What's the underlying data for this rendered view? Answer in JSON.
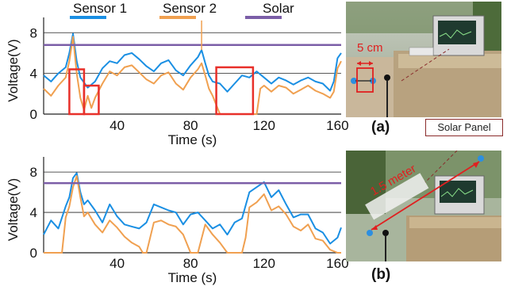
{
  "legend": {
    "entries": [
      {
        "name": "Sensor 1",
        "color": "#1a8fe3"
      },
      {
        "name": "Sensor 2",
        "color": "#f0a050"
      },
      {
        "name": "Solar",
        "color": "#7b5ea7"
      }
    ]
  },
  "chart_data": [
    {
      "type": "line",
      "title": "",
      "xlabel": "Time (s)",
      "ylabel": "Voltage(V)",
      "xlim": [
        0,
        162
      ],
      "ylim": [
        0,
        9.5
      ],
      "xticks": [
        40,
        80,
        120,
        160
      ],
      "yticks": [
        0,
        4,
        8
      ],
      "grid": "horizontal at 4 and 8",
      "series": [
        {
          "name": "Sensor 1",
          "color": "#1a8fe3",
          "x": [
            0,
            4,
            8,
            12,
            14,
            16,
            18,
            20,
            24,
            28,
            32,
            36,
            40,
            44,
            48,
            52,
            56,
            60,
            64,
            68,
            72,
            76,
            80,
            84,
            86,
            88,
            90,
            92,
            96,
            100,
            104,
            108,
            112,
            116,
            120,
            124,
            128,
            132,
            136,
            140,
            144,
            148,
            152,
            156,
            158,
            160,
            162
          ],
          "y": [
            3.8,
            3.2,
            4.0,
            4.6,
            6.0,
            7.9,
            5.2,
            3.6,
            2.6,
            3.2,
            4.5,
            5.2,
            5.0,
            5.8,
            6.0,
            5.4,
            4.7,
            4.2,
            5.0,
            5.3,
            4.3,
            3.8,
            4.8,
            5.6,
            6.3,
            5.0,
            3.8,
            3.2,
            3.0,
            2.2,
            3.0,
            3.8,
            3.6,
            4.2,
            3.6,
            3.0,
            3.6,
            3.3,
            2.9,
            3.3,
            3.6,
            3.2,
            3.0,
            2.3,
            3.2,
            5.5,
            6.0
          ]
        },
        {
          "name": "Sensor 2",
          "color": "#f0a050",
          "x": [
            0,
            4,
            8,
            12,
            14,
            16,
            18,
            20,
            22,
            24,
            26,
            28,
            32,
            36,
            40,
            44,
            48,
            52,
            56,
            60,
            64,
            68,
            72,
            76,
            80,
            84,
            86,
            88,
            90,
            92,
            96,
            100,
            104,
            108,
            112,
            116,
            118,
            120,
            124,
            128,
            132,
            136,
            140,
            144,
            148,
            152,
            156,
            158,
            160,
            162
          ],
          "y": [
            2.5,
            1.8,
            2.8,
            3.6,
            5.2,
            7.6,
            4.0,
            1.6,
            0.4,
            1.8,
            0.6,
            1.6,
            3.0,
            4.2,
            3.8,
            4.6,
            4.8,
            4.1,
            3.4,
            3.0,
            3.8,
            4.1,
            3.0,
            2.4,
            3.6,
            4.4,
            5.0,
            3.8,
            2.5,
            1.8,
            0.0,
            0.0,
            0.0,
            0.0,
            0.0,
            0.0,
            2.5,
            2.8,
            2.2,
            2.8,
            2.6,
            2.0,
            2.4,
            2.8,
            2.3,
            2.0,
            1.6,
            2.2,
            4.5,
            5.2
          ]
        },
        {
          "name": "Solar",
          "color": "#7b5ea7",
          "x": [
            0,
            162
          ],
          "y": [
            6.8,
            6.8
          ]
        }
      ],
      "highlight_boxes": [
        {
          "x_range": [
            14,
            22
          ],
          "y_range": [
            0,
            4.4
          ]
        },
        {
          "x_range": [
            22,
            30
          ],
          "y_range": [
            0,
            2.8
          ]
        },
        {
          "x_range": [
            94,
            114
          ],
          "y_range": [
            0,
            4.6
          ]
        }
      ]
    },
    {
      "type": "line",
      "title": "",
      "xlabel": "Time (s)",
      "ylabel": "Voltage(V)",
      "xlim": [
        0,
        162
      ],
      "ylim": [
        0,
        9.5
      ],
      "xticks": [
        40,
        80,
        120,
        160
      ],
      "yticks": [
        0,
        4,
        8
      ],
      "grid": "horizontal at 4 and 8",
      "series": [
        {
          "name": "Sensor 1",
          "color": "#1a8fe3",
          "x": [
            0,
            4,
            8,
            12,
            14,
            16,
            18,
            20,
            22,
            24,
            28,
            32,
            36,
            40,
            44,
            48,
            52,
            56,
            60,
            64,
            68,
            72,
            76,
            80,
            84,
            88,
            92,
            96,
            100,
            104,
            108,
            112,
            116,
            120,
            124,
            128,
            132,
            136,
            140,
            144,
            148,
            152,
            156,
            160,
            162
          ],
          "y": [
            1.8,
            3.2,
            2.4,
            4.6,
            5.5,
            7.4,
            7.9,
            6.0,
            4.8,
            5.2,
            4.2,
            3.0,
            4.8,
            3.6,
            2.8,
            2.6,
            2.4,
            3.0,
            4.8,
            4.5,
            4.2,
            4.0,
            2.8,
            3.8,
            4.0,
            3.2,
            2.4,
            2.8,
            1.8,
            3.0,
            3.4,
            6.0,
            6.5,
            7.0,
            5.5,
            6.2,
            4.8,
            3.5,
            3.8,
            3.8,
            2.4,
            2.0,
            0.9,
            1.5,
            2.5
          ]
        },
        {
          "name": "Sensor 2",
          "color": "#f0a050",
          "x": [
            0,
            4,
            8,
            10,
            12,
            14,
            16,
            18,
            20,
            22,
            24,
            28,
            32,
            36,
            40,
            44,
            48,
            52,
            54,
            56,
            60,
            64,
            68,
            72,
            76,
            80,
            84,
            88,
            92,
            96,
            100,
            104,
            108,
            110,
            112,
            116,
            120,
            124,
            128,
            132,
            136,
            140,
            144,
            148,
            152,
            156,
            160,
            162
          ],
          "y": [
            0,
            0,
            0,
            0,
            3.5,
            4.6,
            6.5,
            7.6,
            5.5,
            3.6,
            4.0,
            2.8,
            2.0,
            3.2,
            2.5,
            1.6,
            1.0,
            0.6,
            0.0,
            0.0,
            3.0,
            3.2,
            2.8,
            2.6,
            1.8,
            0.0,
            0.0,
            2.8,
            1.8,
            1.0,
            0.0,
            0.0,
            0.0,
            1.5,
            4.5,
            5.0,
            5.8,
            4.2,
            4.6,
            3.8,
            2.6,
            2.2,
            2.8,
            1.4,
            1.2,
            0.3,
            0.0,
            0.0
          ]
        },
        {
          "name": "Solar",
          "color": "#7b5ea7",
          "x": [
            0,
            162
          ],
          "y": [
            6.9,
            6.9
          ]
        }
      ]
    }
  ],
  "photos": {
    "a": {
      "label": "(a)",
      "annotation": "5 cm"
    },
    "b": {
      "label": "(b)",
      "annotation": "1.5 meter"
    },
    "callout": "Solar Panel"
  }
}
